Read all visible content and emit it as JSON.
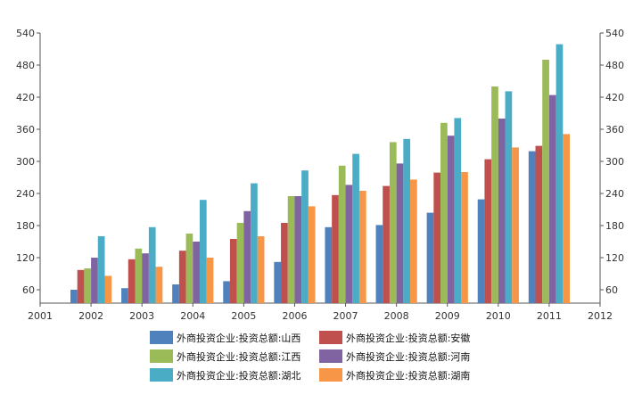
{
  "chart_data": {
    "type": "bar",
    "x_ticks": [
      "2001",
      "2002",
      "2003",
      "2004",
      "2005",
      "2006",
      "2007",
      "2008",
      "2009",
      "2010",
      "2011",
      "2012"
    ],
    "categories": [
      "2002",
      "2003",
      "2004",
      "2005",
      "2006",
      "2007",
      "2008",
      "2009",
      "2010",
      "2011"
    ],
    "y_ticks": [
      "60",
      "120",
      "180",
      "240",
      "300",
      "360",
      "420",
      "480",
      "540"
    ],
    "ylim": [
      35,
      540
    ],
    "y_axis_left": true,
    "y_axis_right": true,
    "grid": false,
    "legend_position": "bottom",
    "series": [
      {
        "name": "外商投资企业:投资总额:山西",
        "color": "#4F81BD",
        "values": [
          60,
          63,
          70,
          76,
          112,
          177,
          181,
          204,
          229,
          319
        ]
      },
      {
        "name": "外商投资企业:投资总额:安徽",
        "color": "#C0504D",
        "values": [
          97,
          117,
          133,
          155,
          185,
          237,
          254,
          279,
          304,
          329
        ]
      },
      {
        "name": "外商投资企业:投资总额:江西",
        "color": "#9BBB59",
        "values": [
          100,
          137,
          165,
          185,
          235,
          292,
          336,
          372,
          440,
          490
        ]
      },
      {
        "name": "外商投资企业:投资总额:河南",
        "color": "#8064A2",
        "values": [
          120,
          128,
          150,
          207,
          235,
          256,
          296,
          348,
          380,
          424
        ]
      },
      {
        "name": "外商投资企业:投资总额:湖北",
        "color": "#4BACC6",
        "values": [
          160,
          177,
          228,
          259,
          283,
          314,
          342,
          381,
          431,
          519
        ]
      },
      {
        "name": "外商投资企业:投资总额:湖南",
        "color": "#F79646",
        "values": [
          86,
          103,
          120,
          160,
          216,
          245,
          266,
          280,
          326,
          351
        ]
      }
    ]
  }
}
